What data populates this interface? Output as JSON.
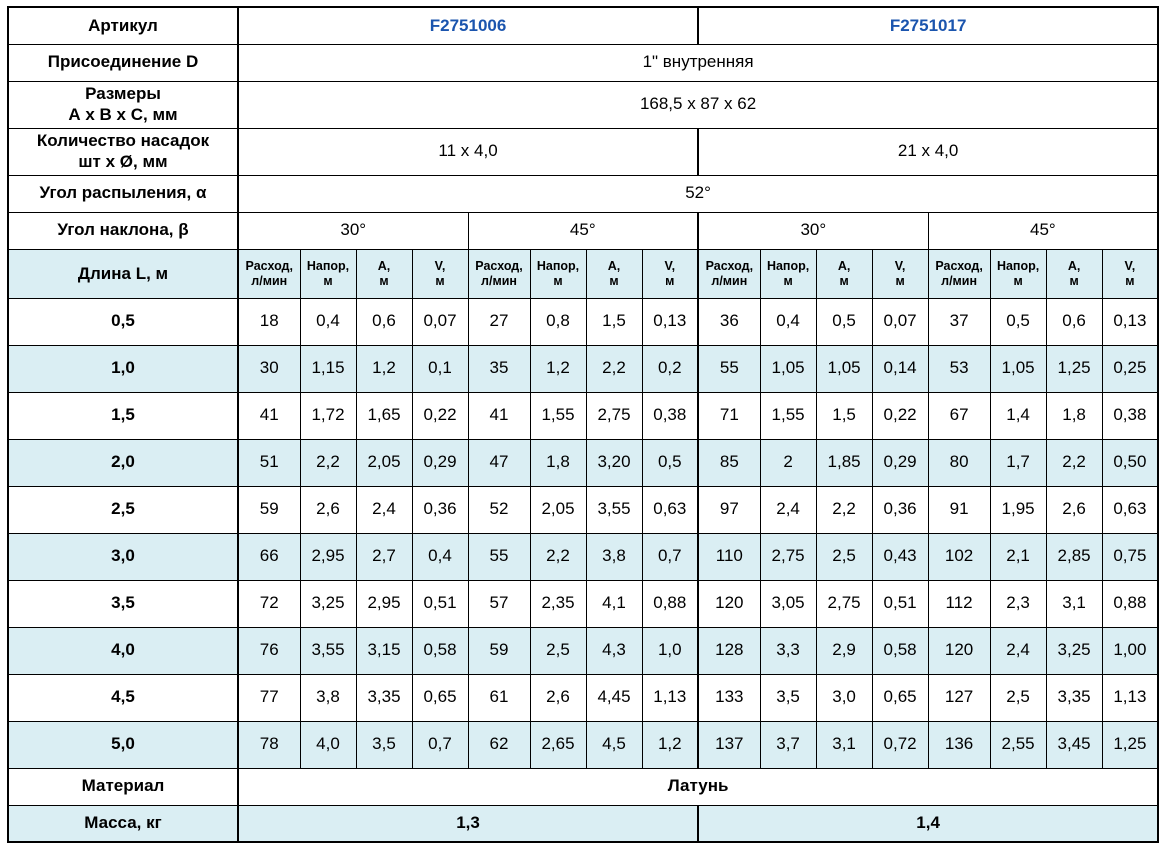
{
  "colors": {
    "article_text": "#1b55ae",
    "stripe": "#daeef3",
    "border": "#000000"
  },
  "specs": {
    "article": {
      "label": "Артикул",
      "values": [
        "F2751006",
        "F2751017"
      ]
    },
    "connection": {
      "label": "Присоединение D",
      "value": "1\" внутренняя"
    },
    "dimensions": {
      "label": "Размеры\nА х В х С, мм",
      "value": "168,5 x 87 x 62"
    },
    "nozzles": {
      "label": "Количество насадок\nшт х Ø, мм",
      "values": [
        "11 х 4,0",
        "21 х 4,0"
      ]
    },
    "spray_angle": {
      "label": "Угол распыления, α",
      "value": "52°"
    },
    "tilt_angle": {
      "label": "Угол наклона, β",
      "values": [
        "30°",
        "45°",
        "30°",
        "45°"
      ]
    },
    "material": {
      "label": "Материал",
      "value": "Латунь"
    },
    "mass": {
      "label": "Масса, кг",
      "values": [
        "1,3",
        "1,4"
      ]
    }
  },
  "table": {
    "length_label": "Длина L, м",
    "measure_headers": [
      "Расход,\nл/мин",
      "Напор,\nм",
      "А,\nм",
      "V,\nм"
    ],
    "rows": [
      {
        "length": "0,5",
        "values": [
          "18",
          "0,4",
          "0,6",
          "0,07",
          "27",
          "0,8",
          "1,5",
          "0,13",
          "36",
          "0,4",
          "0,5",
          "0,07",
          "37",
          "0,5",
          "0,6",
          "0,13"
        ]
      },
      {
        "length": "1,0",
        "values": [
          "30",
          "1,15",
          "1,2",
          "0,1",
          "35",
          "1,2",
          "2,2",
          "0,2",
          "55",
          "1,05",
          "1,05",
          "0,14",
          "53",
          "1,05",
          "1,25",
          "0,25"
        ]
      },
      {
        "length": "1,5",
        "values": [
          "41",
          "1,72",
          "1,65",
          "0,22",
          "41",
          "1,55",
          "2,75",
          "0,38",
          "71",
          "1,55",
          "1,5",
          "0,22",
          "67",
          "1,4",
          "1,8",
          "0,38"
        ]
      },
      {
        "length": "2,0",
        "values": [
          "51",
          "2,2",
          "2,05",
          "0,29",
          "47",
          "1,8",
          "3,20",
          "0,5",
          "85",
          "2",
          "1,85",
          "0,29",
          "80",
          "1,7",
          "2,2",
          "0,50"
        ]
      },
      {
        "length": "2,5",
        "values": [
          "59",
          "2,6",
          "2,4",
          "0,36",
          "52",
          "2,05",
          "3,55",
          "0,63",
          "97",
          "2,4",
          "2,2",
          "0,36",
          "91",
          "1,95",
          "2,6",
          "0,63"
        ]
      },
      {
        "length": "3,0",
        "values": [
          "66",
          "2,95",
          "2,7",
          "0,4",
          "55",
          "2,2",
          "3,8",
          "0,7",
          "110",
          "2,75",
          "2,5",
          "0,43",
          "102",
          "2,1",
          "2,85",
          "0,75"
        ]
      },
      {
        "length": "3,5",
        "values": [
          "72",
          "3,25",
          "2,95",
          "0,51",
          "57",
          "2,35",
          "4,1",
          "0,88",
          "120",
          "3,05",
          "2,75",
          "0,51",
          "112",
          "2,3",
          "3,1",
          "0,88"
        ]
      },
      {
        "length": "4,0",
        "values": [
          "76",
          "3,55",
          "3,15",
          "0,58",
          "59",
          "2,5",
          "4,3",
          "1,0",
          "128",
          "3,3",
          "2,9",
          "0,58",
          "120",
          "2,4",
          "3,25",
          "1,00"
        ]
      },
      {
        "length": "4,5",
        "values": [
          "77",
          "3,8",
          "3,35",
          "0,65",
          "61",
          "2,6",
          "4,45",
          "1,13",
          "133",
          "3,5",
          "3,0",
          "0,65",
          "127",
          "2,5",
          "3,35",
          "1,13"
        ]
      },
      {
        "length": "5,0",
        "values": [
          "78",
          "4,0",
          "3,5",
          "0,7",
          "62",
          "2,65",
          "4,5",
          "1,2",
          "137",
          "3,7",
          "3,1",
          "0,72",
          "136",
          "2,55",
          "3,45",
          "1,25"
        ]
      }
    ]
  }
}
